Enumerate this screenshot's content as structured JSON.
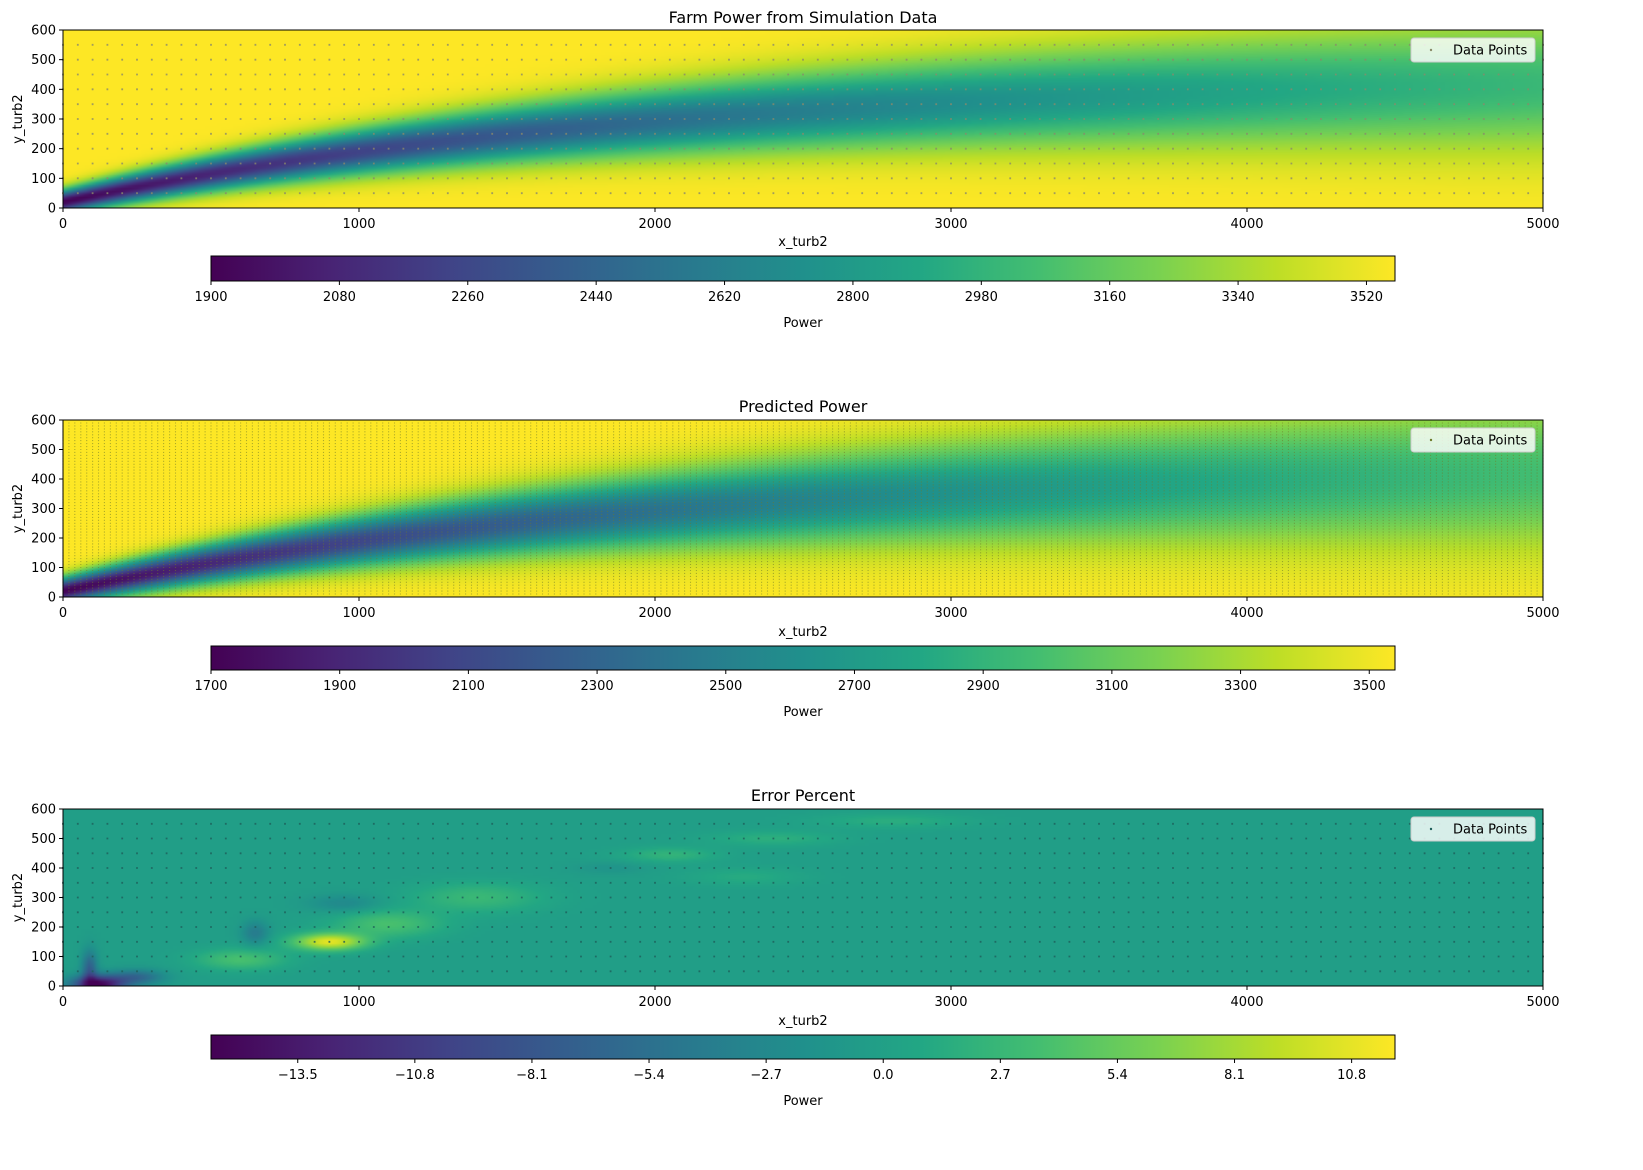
{
  "chart_data": [
    {
      "type": "heatmap",
      "title": "Farm Power from Simulation Data",
      "xlabel": "x_turb2",
      "ylabel": "y_turb2",
      "xlim": [
        0,
        5000
      ],
      "ylim": [
        0,
        600
      ],
      "xticks": [
        0,
        1000,
        2000,
        3000,
        4000,
        5000
      ],
      "yticks": [
        0,
        100,
        200,
        300,
        400,
        500,
        600
      ],
      "colormap": "viridis",
      "colorbar": {
        "label": "Power",
        "range": [
          1900,
          3560
        ],
        "ticks": [
          1900,
          2080,
          2260,
          2440,
          2620,
          2800,
          2980,
          3160,
          3340,
          3520
        ],
        "tick_labels": [
          "1900",
          "2080",
          "2260",
          "2440",
          "2620",
          "2800",
          "2980",
          "3160",
          "3340",
          "3520"
        ],
        "orientation": "horizontal"
      },
      "legend": {
        "entries": [
          "Data Points"
        ],
        "placement": "top-right"
      },
      "grid": false,
      "data_points_grid": {
        "x_step": 50,
        "y_step": 50,
        "color": "#8a8a6a"
      },
      "field": {
        "kind": "wake",
        "base": 3560,
        "depth": 1660,
        "wake_center_formula": "y_c = 20 + 430*(1 - exp(-x/2000))",
        "wake_width_formula": "w = 40 + 0.035*x",
        "recovery": "exp(-x/4500)"
      },
      "wake_samples": [
        {
          "x": 0,
          "y_center": 20,
          "min_power": 1900
        },
        {
          "x": 500,
          "y_center": 115,
          "min_power": 2140
        },
        {
          "x": 1000,
          "y_center": 190,
          "min_power": 2410
        },
        {
          "x": 1500,
          "y_center": 265,
          "min_power": 2680
        },
        {
          "x": 2000,
          "y_center": 330,
          "min_power": 2850
        },
        {
          "x": 2500,
          "y_center": 390,
          "min_power": 2950
        },
        {
          "x": 3000,
          "y_center": 440,
          "min_power": 3080
        },
        {
          "x": 4000,
          "y_center": 510,
          "min_power": 3250
        }
      ]
    },
    {
      "type": "heatmap",
      "title": "Predicted Power",
      "xlabel": "x_turb2",
      "ylabel": "y_turb2",
      "xlim": [
        0,
        5000
      ],
      "ylim": [
        0,
        600
      ],
      "xticks": [
        0,
        1000,
        2000,
        3000,
        4000,
        5000
      ],
      "yticks": [
        0,
        100,
        200,
        300,
        400,
        500,
        600
      ],
      "colormap": "viridis",
      "colorbar": {
        "label": "Power",
        "range": [
          1700,
          3540
        ],
        "ticks": [
          1700,
          1900,
          2100,
          2300,
          2500,
          2700,
          2900,
          3100,
          3300,
          3500
        ],
        "tick_labels": [
          "1700",
          "1900",
          "2100",
          "2300",
          "2500",
          "2700",
          "2900",
          "3100",
          "3300",
          "3500"
        ],
        "orientation": "horizontal"
      },
      "legend": {
        "entries": [
          "Data Points"
        ],
        "placement": "top-right"
      },
      "grid": false,
      "data_points_grid": {
        "x_step": 20,
        "y_step": 10,
        "color": "#6d7a2a"
      },
      "field": {
        "kind": "wake",
        "base": 3540,
        "depth": 1840,
        "wake_center_formula": "y_c = 20 + 430*(1 - exp(-x/2000))",
        "wake_width_formula": "w = 45 + 0.04*x",
        "recovery": "exp(-x/4200)"
      },
      "wake_samples": [
        {
          "x": 0,
          "y_center": 20,
          "min_power": 1700
        },
        {
          "x": 500,
          "y_center": 115,
          "min_power": 2050
        },
        {
          "x": 1000,
          "y_center": 190,
          "min_power": 2450
        },
        {
          "x": 1500,
          "y_center": 265,
          "min_power": 2620
        },
        {
          "x": 2000,
          "y_center": 330,
          "min_power": 2800
        },
        {
          "x": 2500,
          "y_center": 390,
          "min_power": 2950
        },
        {
          "x": 3000,
          "y_center": 440,
          "min_power": 3100
        },
        {
          "x": 4000,
          "y_center": 510,
          "min_power": 3300
        }
      ]
    },
    {
      "type": "heatmap",
      "title": "Error Percent",
      "xlabel": "x_turb2",
      "ylabel": "y_turb2",
      "xlim": [
        0,
        5000
      ],
      "ylim": [
        0,
        600
      ],
      "xticks": [
        0,
        1000,
        2000,
        3000,
        4000,
        5000
      ],
      "yticks": [
        0,
        100,
        200,
        300,
        400,
        500,
        600
      ],
      "colormap": "viridis",
      "colorbar": {
        "label": "Power",
        "range": [
          -15.5,
          11.8
        ],
        "ticks": [
          -13.5,
          -10.8,
          -8.1,
          -5.4,
          -2.7,
          0.0,
          2.7,
          5.4,
          8.1,
          10.8
        ],
        "tick_labels": [
          "−13.5",
          "−10.8",
          "−8.1",
          "−5.4",
          "−2.7",
          "0.0",
          "2.7",
          "5.4",
          "8.1",
          "10.8"
        ],
        "orientation": "horizontal"
      },
      "legend": {
        "entries": [
          "Data Points"
        ],
        "placement": "top-right"
      },
      "grid": false,
      "data_points_grid": {
        "x_step": 50,
        "y_step": 50,
        "color": "#1e5e5a"
      },
      "field": {
        "kind": "blobs",
        "base": -0.2
      },
      "blobs": [
        {
          "x": 900,
          "y": 150,
          "sx": 120,
          "sy": 28,
          "value": 11
        },
        {
          "x": 1100,
          "y": 210,
          "sx": 180,
          "sy": 45,
          "value": 4
        },
        {
          "x": 1400,
          "y": 300,
          "sx": 220,
          "sy": 50,
          "value": 3
        },
        {
          "x": 600,
          "y": 90,
          "sx": 150,
          "sy": 35,
          "value": 4
        },
        {
          "x": 120,
          "y": 5,
          "sx": 90,
          "sy": 30,
          "value": -15
        },
        {
          "x": 90,
          "y": 60,
          "sx": 25,
          "sy": 60,
          "value": -7
        },
        {
          "x": 250,
          "y": 30,
          "sx": 90,
          "sy": 25,
          "value": -6
        },
        {
          "x": 650,
          "y": 180,
          "sx": 45,
          "sy": 40,
          "value": -4
        },
        {
          "x": 950,
          "y": 280,
          "sx": 120,
          "sy": 30,
          "value": -2.5
        },
        {
          "x": 2050,
          "y": 445,
          "sx": 160,
          "sy": 25,
          "value": 2.5
        },
        {
          "x": 2400,
          "y": 500,
          "sx": 220,
          "sy": 25,
          "value": 2
        },
        {
          "x": 2800,
          "y": 560,
          "sx": 260,
          "sy": 25,
          "value": 1.8
        },
        {
          "x": 2300,
          "y": 370,
          "sx": 200,
          "sy": 30,
          "value": 1.5
        },
        {
          "x": 1850,
          "y": 400,
          "sx": 120,
          "sy": 20,
          "value": -1.2
        }
      ]
    }
  ]
}
